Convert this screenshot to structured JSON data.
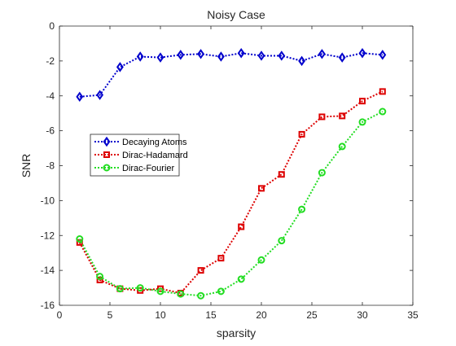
{
  "chart_data": {
    "type": "line",
    "title": "Noisy Case",
    "xlabel": "sparsity",
    "ylabel": "SNR",
    "xlim": [
      0,
      35
    ],
    "ylim": [
      -16,
      0
    ],
    "xticks": [
      0,
      5,
      10,
      15,
      20,
      25,
      30,
      35
    ],
    "yticks": [
      0,
      -2,
      -4,
      -6,
      -8,
      -10,
      -12,
      -14,
      -16
    ],
    "grid": false,
    "legend_position": "middle-left",
    "x": [
      2,
      4,
      6,
      8,
      10,
      12,
      14,
      16,
      18,
      20,
      22,
      24,
      26,
      28,
      30,
      32
    ],
    "series": [
      {
        "name": "Decaying Atoms",
        "color": "#0000cc",
        "marker": "diamond",
        "line_style": "dotted",
        "values": [
          -4.05,
          -3.95,
          -2.35,
          -1.75,
          -1.8,
          -1.65,
          -1.6,
          -1.75,
          -1.55,
          -1.7,
          -1.7,
          -2.0,
          -1.6,
          -1.8,
          -1.55,
          -1.65
        ]
      },
      {
        "name": "Dirac-Hadamard",
        "color": "#dd0000",
        "marker": "square",
        "line_style": "dotted",
        "values": [
          -12.4,
          -14.55,
          -15.05,
          -15.15,
          -15.05,
          -15.3,
          -14.0,
          -13.3,
          -11.5,
          -9.3,
          -8.5,
          -6.2,
          -5.2,
          -5.15,
          -4.3,
          -3.75
        ]
      },
      {
        "name": "Dirac-Fourier",
        "color": "#22dd22",
        "marker": "circle",
        "line_style": "dotted",
        "values": [
          -12.2,
          -14.35,
          -15.05,
          -15.0,
          -15.2,
          -15.35,
          -15.45,
          -15.2,
          -14.5,
          -13.4,
          -12.3,
          -10.5,
          -8.4,
          -6.9,
          -5.5,
          -4.9
        ]
      }
    ]
  }
}
